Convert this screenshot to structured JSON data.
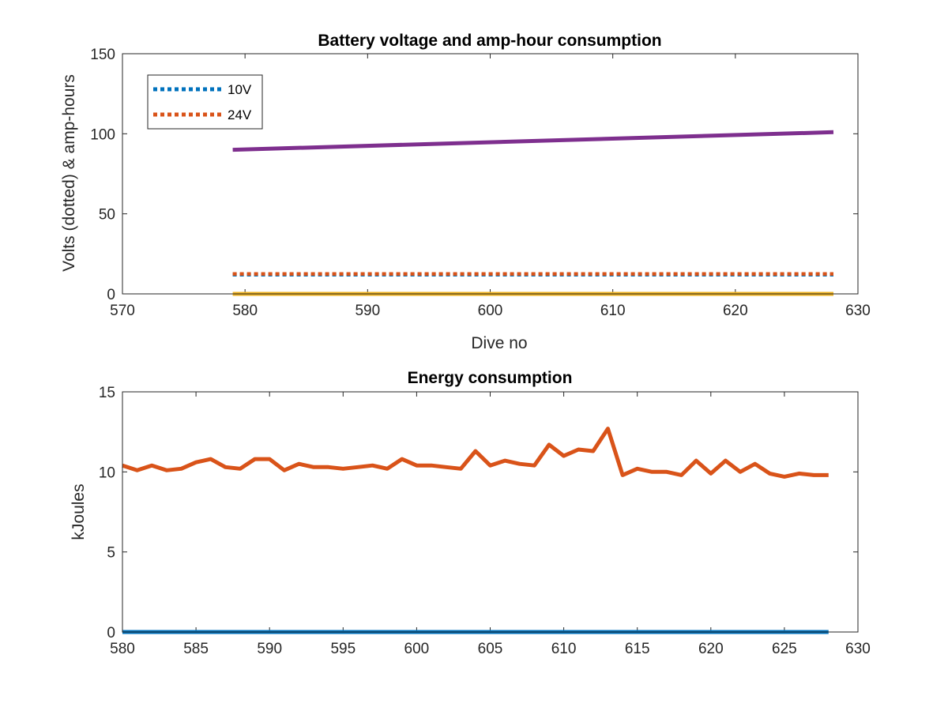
{
  "chart_data": [
    {
      "type": "line",
      "title": "Battery voltage and amp-hour consumption",
      "xlabel": "Dive no",
      "ylabel": "Volts (dotted) & amp-hours",
      "xlim": [
        570,
        630
      ],
      "ylim": [
        0,
        150
      ],
      "xticks": [
        570,
        580,
        590,
        600,
        610,
        620,
        630
      ],
      "yticks": [
        0,
        50,
        100,
        150
      ],
      "legend_position": "top-left",
      "series": [
        {
          "name": "10V",
          "style": "dotted",
          "color": "#0072BD",
          "x": [
            579,
            628
          ],
          "values": [
            12,
            12
          ]
        },
        {
          "name": "24V",
          "style": "dotted",
          "color": "#D95319",
          "x": [
            579,
            628
          ],
          "values": [
            12.5,
            12.5
          ]
        },
        {
          "style": "solid",
          "color": "#EDB120",
          "x": [
            579,
            628
          ],
          "values": [
            0,
            0
          ]
        },
        {
          "style": "solid",
          "color": "#7E2F8E",
          "x": [
            579,
            628
          ],
          "values": [
            90,
            101
          ]
        }
      ]
    },
    {
      "type": "line",
      "title": "Energy consumption",
      "xlabel": "",
      "ylabel": "kJoules",
      "xlim": [
        580,
        630
      ],
      "ylim": [
        0,
        15
      ],
      "xticks": [
        580,
        585,
        590,
        595,
        600,
        605,
        610,
        615,
        620,
        625,
        630
      ],
      "yticks": [
        0,
        5,
        10,
        15
      ],
      "series": [
        {
          "style": "solid",
          "color": "#0072BD",
          "x": [
            580,
            628
          ],
          "values": [
            0,
            0
          ]
        },
        {
          "style": "solid",
          "color": "#D95319",
          "x": [
            580,
            581,
            582,
            583,
            584,
            585,
            586,
            587,
            588,
            589,
            590,
            591,
            592,
            593,
            594,
            595,
            596,
            597,
            598,
            599,
            600,
            601,
            602,
            603,
            604,
            605,
            606,
            607,
            608,
            609,
            610,
            611,
            612,
            613,
            614,
            615,
            616,
            617,
            618,
            619,
            620,
            621,
            622,
            623,
            624,
            625,
            626,
            627,
            628
          ],
          "values": [
            10.4,
            10.1,
            10.4,
            10.1,
            10.2,
            10.6,
            10.8,
            10.3,
            10.2,
            10.8,
            10.8,
            10.1,
            10.5,
            10.3,
            10.3,
            10.2,
            10.3,
            10.4,
            10.2,
            10.8,
            10.4,
            10.4,
            10.3,
            10.2,
            11.3,
            10.4,
            10.7,
            10.5,
            10.4,
            11.7,
            11.0,
            11.4,
            11.3,
            12.7,
            9.8,
            10.2,
            10.0,
            10.0,
            9.8,
            10.7,
            9.9,
            10.7,
            10.0,
            10.5,
            9.9,
            9.7,
            9.9,
            9.8,
            9.8
          ]
        }
      ]
    }
  ]
}
